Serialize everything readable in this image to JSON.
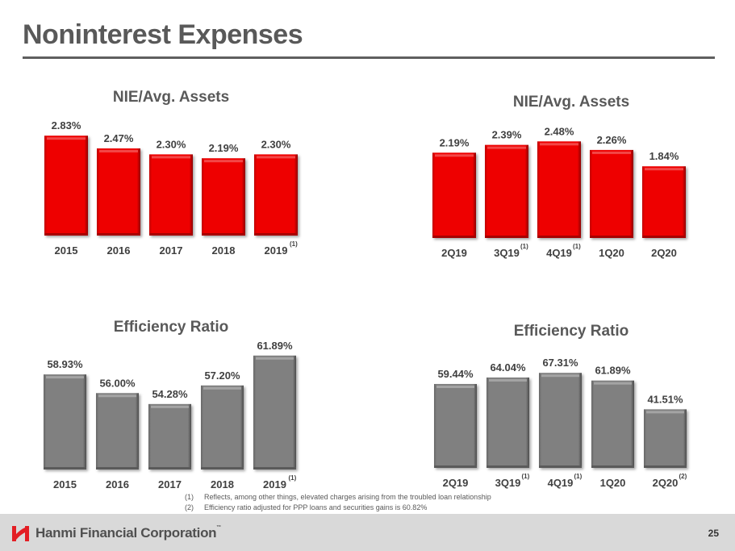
{
  "page": {
    "title": "Noninterest Expenses",
    "page_number": "25"
  },
  "footer": {
    "logo_text": "Hanmi Financial Corporation",
    "logo_tm": "™",
    "brand_color": "#e31e24"
  },
  "footnotes": [
    {
      "num": "(1)",
      "text": "Reflects, among other things, elevated charges arising from the troubled loan relationship"
    },
    {
      "num": "(2)",
      "text": "Efficiency ratio adjusted for PPP loans and securities gains is 60.82%"
    }
  ],
  "chart_data": [
    {
      "type": "bar",
      "title": "NIE/Avg. Assets",
      "categories": [
        "2015",
        "2016",
        "2017",
        "2018",
        "2019"
      ],
      "superscripts": [
        "",
        "",
        "",
        "",
        "(1)"
      ],
      "values": [
        2.83,
        2.47,
        2.3,
        2.19,
        2.3
      ],
      "labels": [
        "2.83%",
        "2.47%",
        "2.30%",
        "2.19%",
        "2.30%"
      ],
      "unit": "%",
      "ylim": [
        0,
        3.2
      ],
      "color": "#ee0000",
      "grid": false,
      "xlabel": "",
      "ylabel": ""
    },
    {
      "type": "bar",
      "title": "NIE/Avg. Assets",
      "categories": [
        "2Q19",
        "3Q19",
        "4Q19",
        "1Q20",
        "2Q20"
      ],
      "superscripts": [
        "",
        "(1)",
        "(1)",
        "",
        ""
      ],
      "values": [
        2.19,
        2.39,
        2.48,
        2.26,
        1.84
      ],
      "labels": [
        "2.19%",
        "2.39%",
        "2.48%",
        "2.26%",
        "1.84%"
      ],
      "unit": "%",
      "ylim": [
        0,
        2.9
      ],
      "color": "#ee0000",
      "grid": false,
      "xlabel": "",
      "ylabel": ""
    },
    {
      "type": "bar",
      "title": "Efficiency Ratio",
      "categories": [
        "2015",
        "2016",
        "2017",
        "2018",
        "2019"
      ],
      "superscripts": [
        "",
        "",
        "",
        "",
        "(1)"
      ],
      "values": [
        58.93,
        56.0,
        54.28,
        57.2,
        61.89
      ],
      "labels": [
        "58.93%",
        "56.00%",
        "54.28%",
        "57.20%",
        "61.89%"
      ],
      "unit": "%",
      "ylim": [
        44,
        63
      ],
      "color": "#808080",
      "grid": false,
      "xlabel": "",
      "ylabel": ""
    },
    {
      "type": "bar",
      "title": "Efficiency Ratio",
      "categories": [
        "2Q19",
        "3Q19",
        "4Q19",
        "1Q20",
        "2Q20"
      ],
      "superscripts": [
        "",
        "(1)",
        "(1)",
        "",
        "(2)"
      ],
      "values": [
        59.44,
        64.04,
        67.31,
        61.89,
        41.51
      ],
      "labels": [
        "59.44%",
        "64.04%",
        "67.31%",
        "61.89%",
        "41.51%"
      ],
      "unit": "%",
      "ylim": [
        0,
        80
      ],
      "color": "#808080",
      "grid": false,
      "xlabel": "",
      "ylabel": ""
    }
  ]
}
